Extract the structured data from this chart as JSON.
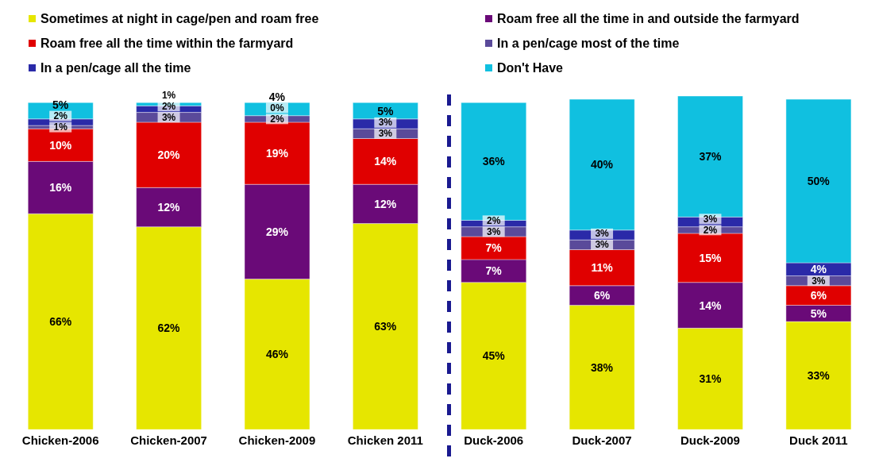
{
  "chart_data": {
    "type": "bar",
    "stacked": true,
    "legend": "top",
    "tick_labels": "x",
    "categories": [
      "Chicken-2006",
      "Chicken-2007",
      "Chicken-2009",
      "Chicken 2011",
      "Duck-2006",
      "Duck-2007",
      "Duck-2009",
      "Duck 2011"
    ],
    "series": [
      {
        "name": "Sometimes at night in cage/pen and roam free",
        "color": "#e6e600",
        "values": [
          66,
          62,
          46,
          63,
          45,
          38,
          31,
          33
        ],
        "value_labels": [
          "66%",
          "62%",
          "46%",
          "63%",
          "45%",
          "38%",
          "31%",
          "33%"
        ]
      },
      {
        "name": "Roam free all the time in and outside the farmyard",
        "color": "#6a0a78",
        "values": [
          16,
          12,
          29,
          12,
          7,
          6,
          14,
          5
        ],
        "value_labels": [
          "16%",
          "12%",
          "29%",
          "12%",
          "7%",
          "6%",
          "14%",
          "5%"
        ]
      },
      {
        "name": "Roam free all the time within the farmyard",
        "color": "#e00000",
        "values": [
          10,
          20,
          19,
          14,
          7,
          11,
          15,
          6
        ],
        "value_labels": [
          "10%",
          "20%",
          "19%",
          "14%",
          "7%",
          "11%",
          "15%",
          "6%"
        ]
      },
      {
        "name": "In a pen/cage most of the time",
        "color": "#5a4a9a",
        "values": [
          1,
          3,
          2,
          3,
          3,
          3,
          2,
          3
        ],
        "value_labels": [
          "1%",
          "3%",
          "2%",
          "3%",
          "3%",
          "3%",
          "2%",
          "3%"
        ]
      },
      {
        "name": "In a pen/cage all the time",
        "color": "#2a2aa8",
        "values": [
          2,
          2,
          0,
          3,
          2,
          3,
          3,
          4
        ],
        "value_labels": [
          "2%",
          "2%",
          "0%",
          "3%",
          "2%",
          "3%",
          "3%",
          "4%"
        ]
      },
      {
        "name": "Don't Have",
        "color": "#10c0e0",
        "values": [
          5,
          1,
          4,
          5,
          36,
          40,
          37,
          50
        ],
        "value_labels": [
          "5%",
          "1%",
          "4%",
          "5%",
          "36%",
          "40%",
          "37%",
          "50%"
        ]
      }
    ]
  }
}
